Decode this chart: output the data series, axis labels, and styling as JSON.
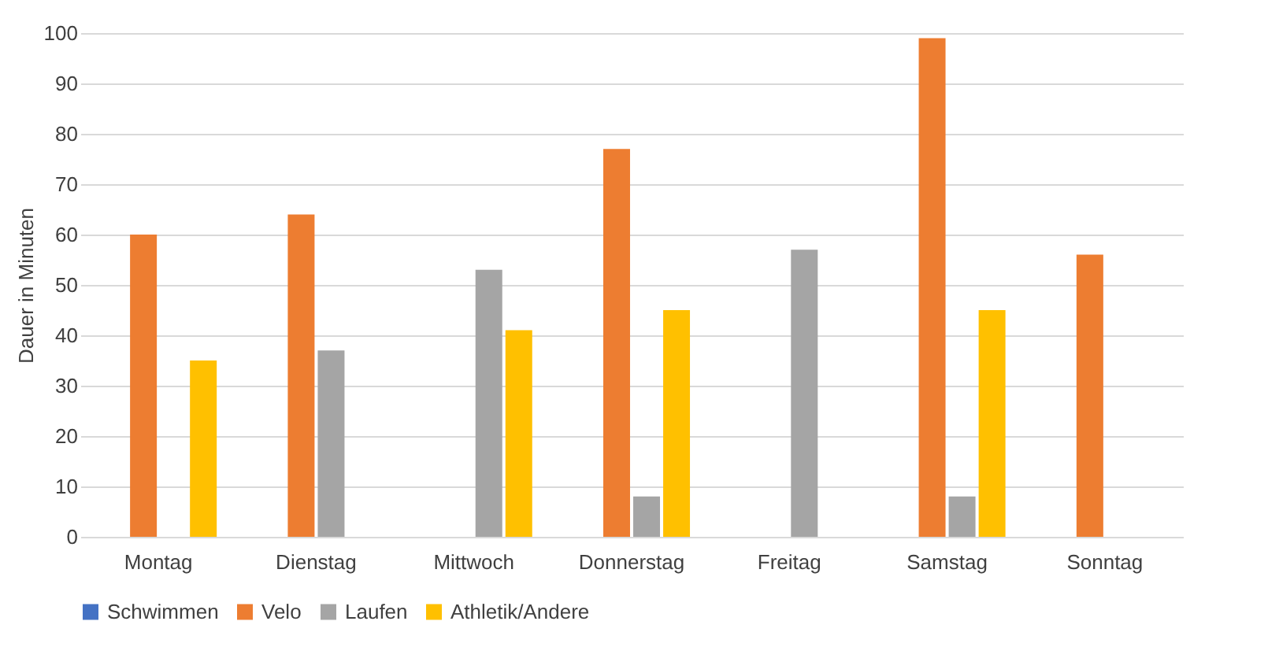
{
  "chart_data": {
    "type": "bar",
    "ylabel": "Dauer in Minuten",
    "categories": [
      "Montag",
      "Dienstag",
      "Mittwoch",
      "Donnerstag",
      "Freitag",
      "Samstag",
      "Sonntag"
    ],
    "series": [
      {
        "name": "Schwimmen",
        "color": "#4472c4",
        "values": [
          0,
          0,
          0,
          0,
          0,
          0,
          0
        ]
      },
      {
        "name": "Velo",
        "color": "#ed7d31",
        "values": [
          60,
          64,
          0,
          77,
          0,
          99,
          56
        ]
      },
      {
        "name": "Laufen",
        "color": "#a5a5a5",
        "values": [
          0,
          37,
          53,
          8,
          57,
          8,
          0
        ]
      },
      {
        "name": "Athletik/Andere",
        "color": "#ffc000",
        "values": [
          35,
          0,
          41,
          45,
          0,
          45,
          0
        ]
      }
    ],
    "ylim": [
      0,
      100
    ],
    "yticks": [
      0,
      10,
      20,
      30,
      40,
      50,
      60,
      70,
      80,
      90,
      100
    ],
    "grid": "y",
    "legend": "bottom"
  }
}
